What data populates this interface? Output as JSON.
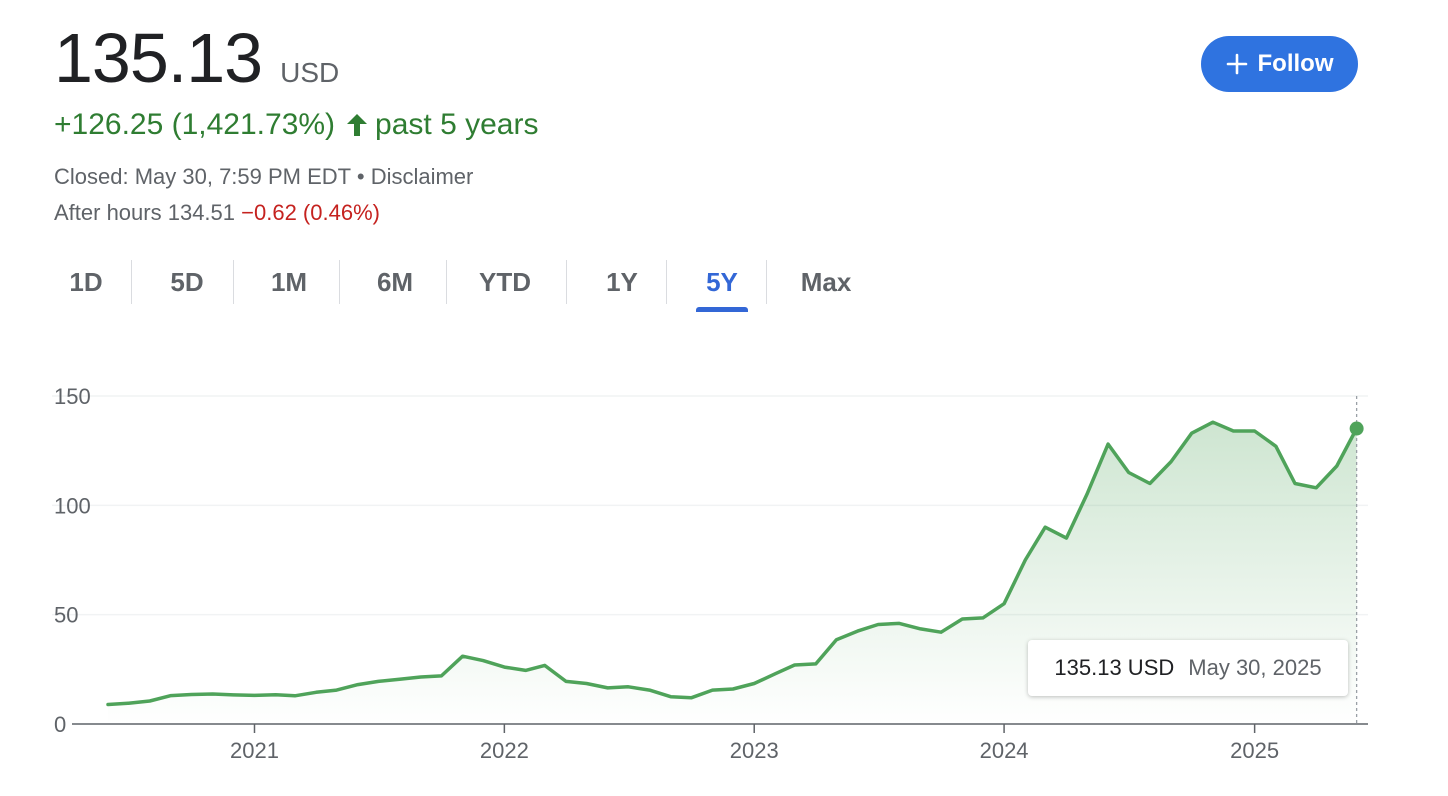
{
  "quote": {
    "price": "135.13",
    "currency": "USD",
    "change": "+126.25 (1,421.73%)",
    "period": "past 5 years",
    "closed": "Closed: May 30, 7:59 PM EDT",
    "separator": "•",
    "disclaimer": "Disclaimer",
    "after_hours_label": "After hours 134.51",
    "after_hours_change": "−0.62 (0.46%)"
  },
  "follow_button": {
    "label": "Follow",
    "icon": "plus-icon"
  },
  "range_tabs": [
    {
      "label": "1D",
      "active": false
    },
    {
      "label": "5D",
      "active": false
    },
    {
      "label": "1M",
      "active": false
    },
    {
      "label": "6M",
      "active": false
    },
    {
      "label": "YTD",
      "active": false
    },
    {
      "label": "1Y",
      "active": false
    },
    {
      "label": "5Y",
      "active": true
    },
    {
      "label": "Max",
      "active": false
    }
  ],
  "colors": {
    "up": "#2f7d32",
    "down": "#c5221f",
    "line": "#4fa35a",
    "accent": "#3367d6",
    "button": "#2f73e0"
  },
  "chart_data": {
    "type": "area",
    "title": "",
    "xlabel": "",
    "ylabel": "",
    "ylim": [
      0,
      150
    ],
    "yticks": [
      0,
      50,
      100,
      150
    ],
    "x_tick_labels": [
      "2021",
      "2022",
      "2023",
      "2024",
      "2025"
    ],
    "x_ticks": [
      "2021-01-01",
      "2022-01-01",
      "2023-01-01",
      "2024-01-01",
      "2025-01-01"
    ],
    "xlim": [
      "2020-06-01",
      "2025-06-01"
    ],
    "grid": true,
    "series": [
      {
        "name": "",
        "points": [
          [
            "2020-06-01",
            8.9
          ],
          [
            "2020-07-01",
            9.5
          ],
          [
            "2020-08-01",
            10.5
          ],
          [
            "2020-09-01",
            13.0
          ],
          [
            "2020-10-01",
            13.5
          ],
          [
            "2020-11-01",
            13.7
          ],
          [
            "2020-12-01",
            13.3
          ],
          [
            "2021-01-01",
            13.1
          ],
          [
            "2021-02-01",
            13.4
          ],
          [
            "2021-03-01",
            12.9
          ],
          [
            "2021-04-01",
            14.5
          ],
          [
            "2021-05-01",
            15.5
          ],
          [
            "2021-06-01",
            18.0
          ],
          [
            "2021-07-01",
            19.5
          ],
          [
            "2021-08-01",
            20.5
          ],
          [
            "2021-09-01",
            21.5
          ],
          [
            "2021-10-01",
            22.0
          ],
          [
            "2021-11-01",
            31.0
          ],
          [
            "2021-12-01",
            29.0
          ],
          [
            "2022-01-01",
            26.0
          ],
          [
            "2022-02-01",
            24.5
          ],
          [
            "2022-03-01",
            26.8
          ],
          [
            "2022-04-01",
            19.5
          ],
          [
            "2022-05-01",
            18.5
          ],
          [
            "2022-06-01",
            16.5
          ],
          [
            "2022-07-01",
            17.0
          ],
          [
            "2022-08-01",
            15.5
          ],
          [
            "2022-09-01",
            12.5
          ],
          [
            "2022-10-01",
            12.0
          ],
          [
            "2022-11-01",
            15.5
          ],
          [
            "2022-12-01",
            16.0
          ],
          [
            "2023-01-01",
            18.5
          ],
          [
            "2023-02-01",
            23.0
          ],
          [
            "2023-03-01",
            27.0
          ],
          [
            "2023-04-01",
            27.5
          ],
          [
            "2023-05-01",
            38.5
          ],
          [
            "2023-06-01",
            42.5
          ],
          [
            "2023-07-01",
            45.5
          ],
          [
            "2023-08-01",
            46.0
          ],
          [
            "2023-09-01",
            43.5
          ],
          [
            "2023-10-01",
            42.0
          ],
          [
            "2023-11-01",
            48.0
          ],
          [
            "2023-12-01",
            48.5
          ],
          [
            "2024-01-01",
            55.0
          ],
          [
            "2024-02-01",
            75.0
          ],
          [
            "2024-03-01",
            90.0
          ],
          [
            "2024-04-01",
            85.0
          ],
          [
            "2024-05-01",
            105.0
          ],
          [
            "2024-06-01",
            128.0
          ],
          [
            "2024-07-01",
            115.0
          ],
          [
            "2024-08-01",
            110.0
          ],
          [
            "2024-09-01",
            120.0
          ],
          [
            "2024-10-01",
            133.0
          ],
          [
            "2024-11-01",
            138.0
          ],
          [
            "2024-12-01",
            134.0
          ],
          [
            "2025-01-01",
            134.0
          ],
          [
            "2025-02-01",
            127.0
          ],
          [
            "2025-03-01",
            110.0
          ],
          [
            "2025-04-01",
            108.0
          ],
          [
            "2025-05-01",
            118.0
          ],
          [
            "2025-05-30",
            135.13
          ]
        ]
      }
    ],
    "tooltip": {
      "value": "135.13 USD",
      "date": "May 30, 2025"
    }
  }
}
